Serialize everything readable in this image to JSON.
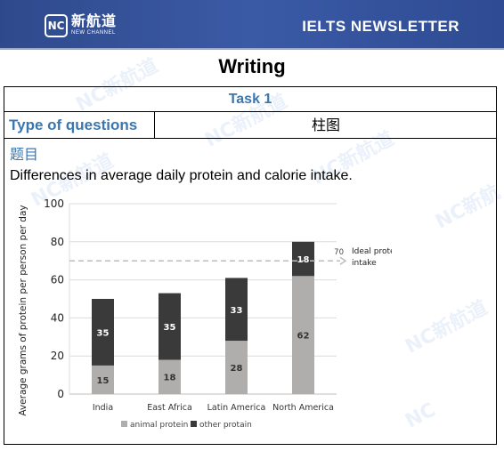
{
  "header": {
    "logo_mark": "NC",
    "logo_cn": "新航道",
    "logo_en": "NEW CHANNEL",
    "title": "IELTS  NEWSLETTER"
  },
  "page_title": "Writing",
  "task": {
    "label": "Task 1",
    "type_label": "Type of questions",
    "type_value": "柱图",
    "section_label": "题目",
    "description": "Differences in average daily protein and calorie intake."
  },
  "colors": {
    "banner": "#3b5aa6",
    "accent": "#3a77b0",
    "animal": "#b0adad",
    "other": "#3a3a3a"
  },
  "chart_data": {
    "type": "bar",
    "stacked": true,
    "categories": [
      "India",
      "East Africa",
      "Latin America",
      "North America"
    ],
    "series": [
      {
        "name": "animal protein",
        "values": [
          15,
          18,
          28,
          62
        ]
      },
      {
        "name": "other protain",
        "values": [
          35,
          35,
          33,
          18
        ]
      }
    ],
    "ylabel": "Average grams of protein per person per day",
    "ylim": [
      0,
      100
    ],
    "yticks": [
      0,
      20,
      40,
      60,
      80,
      100
    ],
    "grid": true,
    "reference_line": {
      "value": 70,
      "value_label": "70",
      "label": "Ideal protein intake"
    },
    "legend": "bottom"
  }
}
